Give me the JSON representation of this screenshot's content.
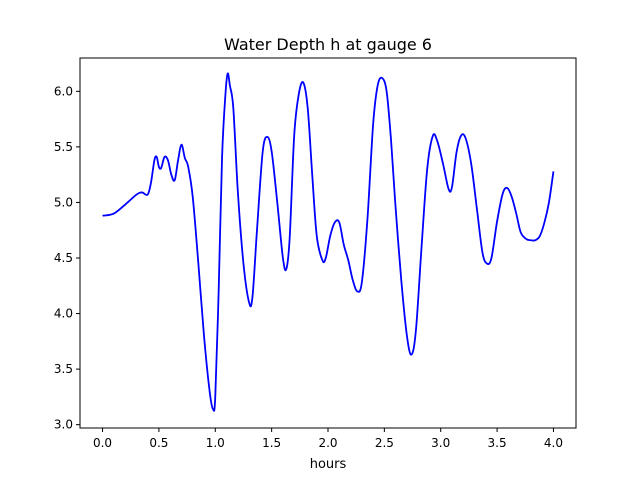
{
  "chart_data": {
    "type": "line",
    "title": "Water Depth h at gauge 6",
    "xlabel": "hours",
    "ylabel": "",
    "xlim": [
      -0.2,
      4.2
    ],
    "ylim": [
      2.97,
      6.3
    ],
    "xticks": [
      0.0,
      0.5,
      1.0,
      1.5,
      2.0,
      2.5,
      3.0,
      3.5,
      4.0
    ],
    "xtick_labels": [
      "0.0",
      "0.5",
      "1.0",
      "1.5",
      "2.0",
      "2.5",
      "3.0",
      "3.5",
      "4.0"
    ],
    "yticks": [
      3.0,
      3.5,
      4.0,
      4.5,
      5.0,
      5.5,
      6.0
    ],
    "ytick_labels": [
      "3.0",
      "3.5",
      "4.0",
      "4.5",
      "5.0",
      "5.5",
      "6.0"
    ],
    "grid": false,
    "legend": "none",
    "series": [
      {
        "color": "#0000ff",
        "x": [
          0.0,
          0.1,
          0.2,
          0.3,
          0.35,
          0.4,
          0.43,
          0.46,
          0.48,
          0.5,
          0.52,
          0.55,
          0.58,
          0.61,
          0.64,
          0.67,
          0.7,
          0.73,
          0.76,
          0.8,
          0.85,
          0.9,
          0.95,
          0.98,
          1.0,
          1.03,
          1.06,
          1.09,
          1.11,
          1.13,
          1.16,
          1.2,
          1.25,
          1.3,
          1.33,
          1.37,
          1.42,
          1.46,
          1.5,
          1.55,
          1.6,
          1.63,
          1.66,
          1.7,
          1.74,
          1.78,
          1.82,
          1.86,
          1.9,
          1.95,
          1.98,
          2.02,
          2.06,
          2.1,
          2.14,
          2.18,
          2.22,
          2.26,
          2.3,
          2.35,
          2.4,
          2.44,
          2.48,
          2.52,
          2.56,
          2.6,
          2.65,
          2.7,
          2.74,
          2.78,
          2.83,
          2.88,
          2.93,
          2.97,
          3.02,
          3.07,
          3.1,
          3.14,
          3.18,
          3.22,
          3.27,
          3.32,
          3.37,
          3.41,
          3.45,
          3.5,
          3.55,
          3.59,
          3.63,
          3.67,
          3.71,
          3.76,
          3.8,
          3.84,
          3.88,
          3.92,
          3.96,
          4.0
        ],
        "y": [
          4.88,
          4.9,
          4.98,
          5.07,
          5.09,
          5.07,
          5.18,
          5.38,
          5.41,
          5.32,
          5.31,
          5.41,
          5.38,
          5.25,
          5.2,
          5.38,
          5.52,
          5.4,
          5.32,
          5.05,
          4.45,
          3.8,
          3.3,
          3.14,
          3.25,
          4.2,
          5.4,
          5.97,
          6.16,
          6.05,
          5.85,
          5.1,
          4.45,
          4.1,
          4.15,
          4.75,
          5.45,
          5.59,
          5.46,
          5.0,
          4.5,
          4.4,
          4.68,
          5.6,
          5.97,
          6.08,
          5.85,
          5.25,
          4.7,
          4.48,
          4.5,
          4.7,
          4.82,
          4.82,
          4.62,
          4.48,
          4.3,
          4.2,
          4.28,
          4.85,
          5.7,
          6.05,
          6.12,
          6.0,
          5.55,
          4.95,
          4.3,
          3.8,
          3.63,
          3.85,
          4.6,
          5.3,
          5.6,
          5.55,
          5.35,
          5.12,
          5.14,
          5.45,
          5.6,
          5.58,
          5.35,
          4.95,
          4.55,
          4.45,
          4.5,
          4.83,
          5.08,
          5.13,
          5.05,
          4.9,
          4.73,
          4.67,
          4.66,
          4.66,
          4.7,
          4.82,
          5.0,
          5.28
        ]
      }
    ]
  }
}
